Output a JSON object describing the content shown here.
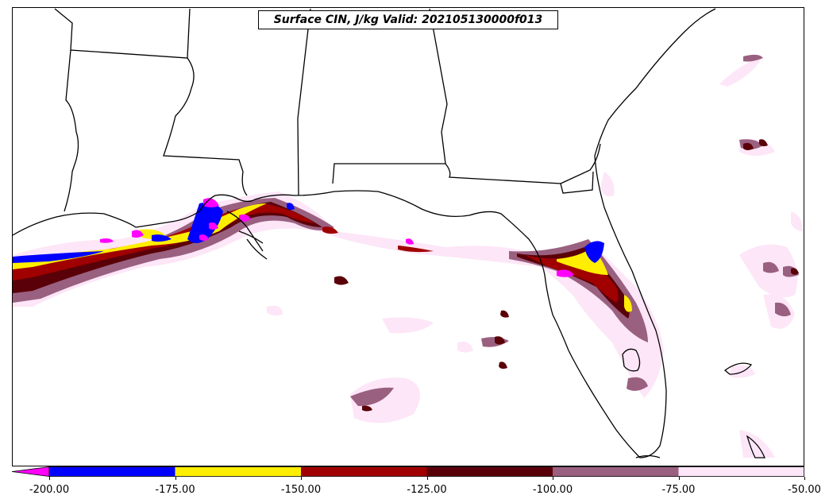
{
  "title": "Surface CIN, J/kg Valid: 202105130000f013",
  "colorbar": {
    "extend": "min",
    "levels": [
      {
        "from": -200,
        "to": -175,
        "color": "#0000ff"
      },
      {
        "from": -175,
        "to": -150,
        "color": "#ffee00"
      },
      {
        "from": -150,
        "to": -125,
        "color": "#a00000"
      },
      {
        "from": -125,
        "to": -100,
        "color": "#5a0008"
      },
      {
        "from": -100,
        "to": -75,
        "color": "#9a6080"
      },
      {
        "from": -75,
        "to": -50,
        "color": "#fde6f7"
      }
    ],
    "under_color": "#ff00ff",
    "tick_labels": [
      "-200.00",
      "-175.00",
      "-150.00",
      "-125.00",
      "-100.00",
      "-75.00",
      "-50.00"
    ]
  },
  "colors": {
    "coastline": "#000000",
    "background": "#ffffff"
  }
}
